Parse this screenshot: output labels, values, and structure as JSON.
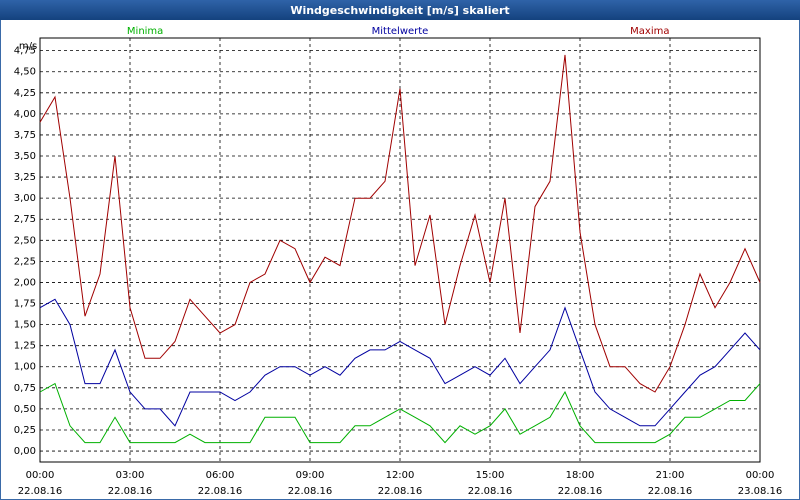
{
  "chart_data": {
    "type": "line",
    "title": "Windgeschwindigkeit [m/s] skaliert",
    "y_label": "m/s",
    "x": [
      0,
      0.5,
      1,
      1.5,
      2,
      2.5,
      3,
      3.5,
      4,
      4.5,
      5,
      5.5,
      6,
      6.5,
      7,
      7.5,
      8,
      8.5,
      9,
      9.5,
      10,
      10.5,
      11,
      11.5,
      12,
      12.5,
      13,
      13.5,
      14,
      14.5,
      15,
      15.5,
      16,
      16.5,
      17,
      17.5,
      18,
      18.5,
      19,
      19.5,
      20,
      20.5,
      21,
      21.5,
      22,
      22.5,
      23,
      23.5,
      24
    ],
    "series": [
      {
        "name": "Minima",
        "color": "#00b000",
        "values": [
          0.7,
          0.8,
          0.3,
          0.1,
          0.1,
          0.4,
          0.1,
          0.1,
          0.1,
          0.1,
          0.2,
          0.1,
          0.1,
          0.1,
          0.1,
          0.4,
          0.4,
          0.4,
          0.1,
          0.1,
          0.1,
          0.3,
          0.3,
          0.4,
          0.5,
          0.4,
          0.3,
          0.1,
          0.3,
          0.2,
          0.3,
          0.5,
          0.2,
          0.3,
          0.4,
          0.7,
          0.3,
          0.1,
          0.1,
          0.1,
          0.1,
          0.1,
          0.2,
          0.4,
          0.4,
          0.5,
          0.6,
          0.6,
          0.8
        ]
      },
      {
        "name": "Mittelwerte",
        "color": "#0000a0",
        "values": [
          1.7,
          1.8,
          1.5,
          0.8,
          0.8,
          1.2,
          0.7,
          0.5,
          0.5,
          0.3,
          0.7,
          0.7,
          0.7,
          0.6,
          0.7,
          0.9,
          1.0,
          1.0,
          0.9,
          1.0,
          0.9,
          1.1,
          1.2,
          1.2,
          1.3,
          1.2,
          1.1,
          0.8,
          0.9,
          1.0,
          0.9,
          1.1,
          0.8,
          1.0,
          1.2,
          1.7,
          1.2,
          0.7,
          0.5,
          0.4,
          0.3,
          0.3,
          0.5,
          0.7,
          0.9,
          1.0,
          1.2,
          1.4,
          1.2
        ]
      },
      {
        "name": "Maxima",
        "color": "#a00000",
        "values": [
          3.9,
          4.2,
          3.0,
          1.6,
          2.1,
          3.5,
          1.7,
          1.1,
          1.1,
          1.3,
          1.8,
          1.6,
          1.4,
          1.5,
          2.0,
          2.1,
          2.5,
          2.4,
          2.0,
          2.3,
          2.2,
          3.0,
          3.0,
          3.2,
          4.3,
          2.2,
          2.8,
          1.5,
          2.2,
          2.8,
          2.0,
          3.0,
          1.4,
          2.9,
          3.2,
          4.7,
          2.6,
          1.5,
          1.0,
          1.0,
          0.8,
          0.7,
          1.0,
          1.5,
          2.1,
          1.7,
          2.0,
          2.4,
          2.0
        ]
      }
    ],
    "xlim": [
      0,
      24
    ],
    "xticks": [
      {
        "value": 0,
        "label": [
          "00:00",
          "22.08.16"
        ]
      },
      {
        "value": 3,
        "label": [
          "03:00",
          "22.08.16"
        ]
      },
      {
        "value": 6,
        "label": [
          "06:00",
          "22.08.16"
        ]
      },
      {
        "value": 9,
        "label": [
          "09:00",
          "22.08.16"
        ]
      },
      {
        "value": 12,
        "label": [
          "12:00",
          "22.08.16"
        ]
      },
      {
        "value": 15,
        "label": [
          "15:00",
          "22.08.16"
        ]
      },
      {
        "value": 18,
        "label": [
          "18:00",
          "22.08.16"
        ]
      },
      {
        "value": 21,
        "label": [
          "21:00",
          "22.08.16"
        ]
      },
      {
        "value": 24,
        "label": [
          "00:00",
          "23.08.16"
        ]
      }
    ],
    "ylim": [
      -0.13,
      4.9
    ],
    "yticks": [
      {
        "value": 0,
        "label": "0,00"
      },
      {
        "value": 0.25,
        "label": "0,25"
      },
      {
        "value": 0.5,
        "label": "0,50"
      },
      {
        "value": 0.75,
        "label": "0,75"
      },
      {
        "value": 1,
        "label": "1,00"
      },
      {
        "value": 1.25,
        "label": "1,25"
      },
      {
        "value": 1.5,
        "label": "1,50"
      },
      {
        "value": 1.75,
        "label": "1,75"
      },
      {
        "value": 2,
        "label": "2,00"
      },
      {
        "value": 2.25,
        "label": "2,25"
      },
      {
        "value": 2.5,
        "label": "2,50"
      },
      {
        "value": 2.75,
        "label": "2,75"
      },
      {
        "value": 3,
        "label": "3,00"
      },
      {
        "value": 3.25,
        "label": "3,25"
      },
      {
        "value": 3.5,
        "label": "3,50"
      },
      {
        "value": 3.75,
        "label": "3,75"
      },
      {
        "value": 4,
        "label": "4,00"
      },
      {
        "value": 4.25,
        "label": "4,25"
      },
      {
        "value": 4.5,
        "label": "4,50"
      },
      {
        "value": 4.75,
        "label": "4,75"
      }
    ],
    "grid": true
  }
}
